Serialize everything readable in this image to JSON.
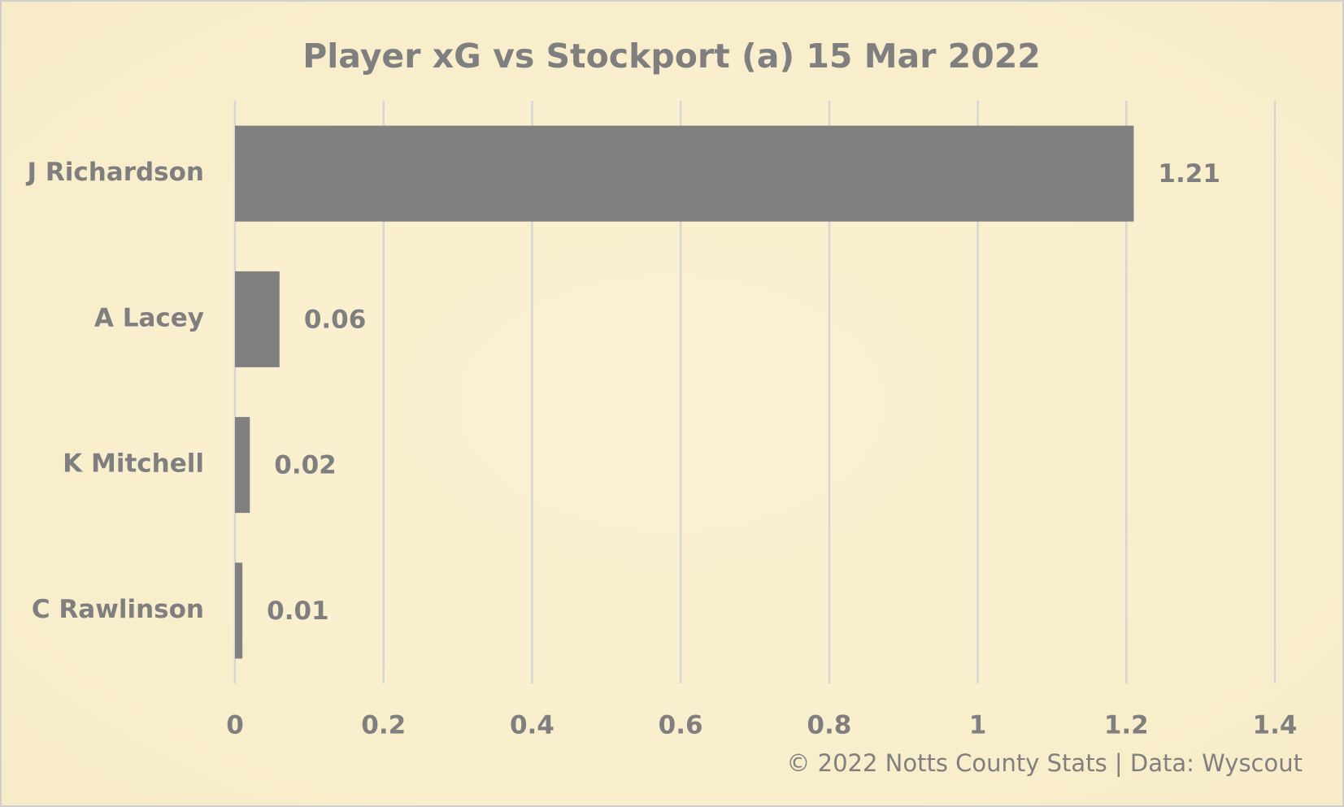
{
  "chart_data": {
    "type": "hbar",
    "title": "Player xG vs Stockport (a) 15 Mar 2022",
    "categories": [
      "J Richardson",
      "A Lacey",
      "K Mitchell",
      "C Rawlinson"
    ],
    "values": [
      1.21,
      0.06,
      0.02,
      0.01
    ],
    "color": "#808080",
    "xlim": [
      0,
      1.4
    ],
    "xticks": [
      0,
      0.2,
      0.4,
      0.6,
      0.8,
      1,
      1.2,
      1.4
    ],
    "grid": true,
    "footer": "© 2022 Notts County Stats | Data: Wyscout"
  }
}
